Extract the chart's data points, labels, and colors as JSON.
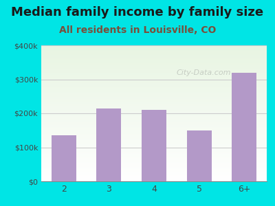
{
  "categories": [
    "2",
    "3",
    "4",
    "5",
    "6+"
  ],
  "values": [
    135000,
    215000,
    210000,
    150000,
    320000
  ],
  "bar_color": "#b399c8",
  "title": "Median family income by family size",
  "subtitle": "All residents in Louisville, CO",
  "title_fontsize": 13,
  "subtitle_fontsize": 10,
  "title_color": "#1a1a1a",
  "subtitle_color": "#7a4f3a",
  "ylabel_ticks": [
    "$0",
    "$100k",
    "$200k",
    "$300k",
    "$400k"
  ],
  "ytick_values": [
    0,
    100000,
    200000,
    300000,
    400000
  ],
  "ylim": [
    0,
    400000
  ],
  "outer_bg_color": "#00e5e5",
  "plot_bg_top_color": "#e8f5e2",
  "plot_bg_bottom_color": "#ffffff",
  "watermark": "City-Data.com",
  "grid_color": "#cccccc"
}
